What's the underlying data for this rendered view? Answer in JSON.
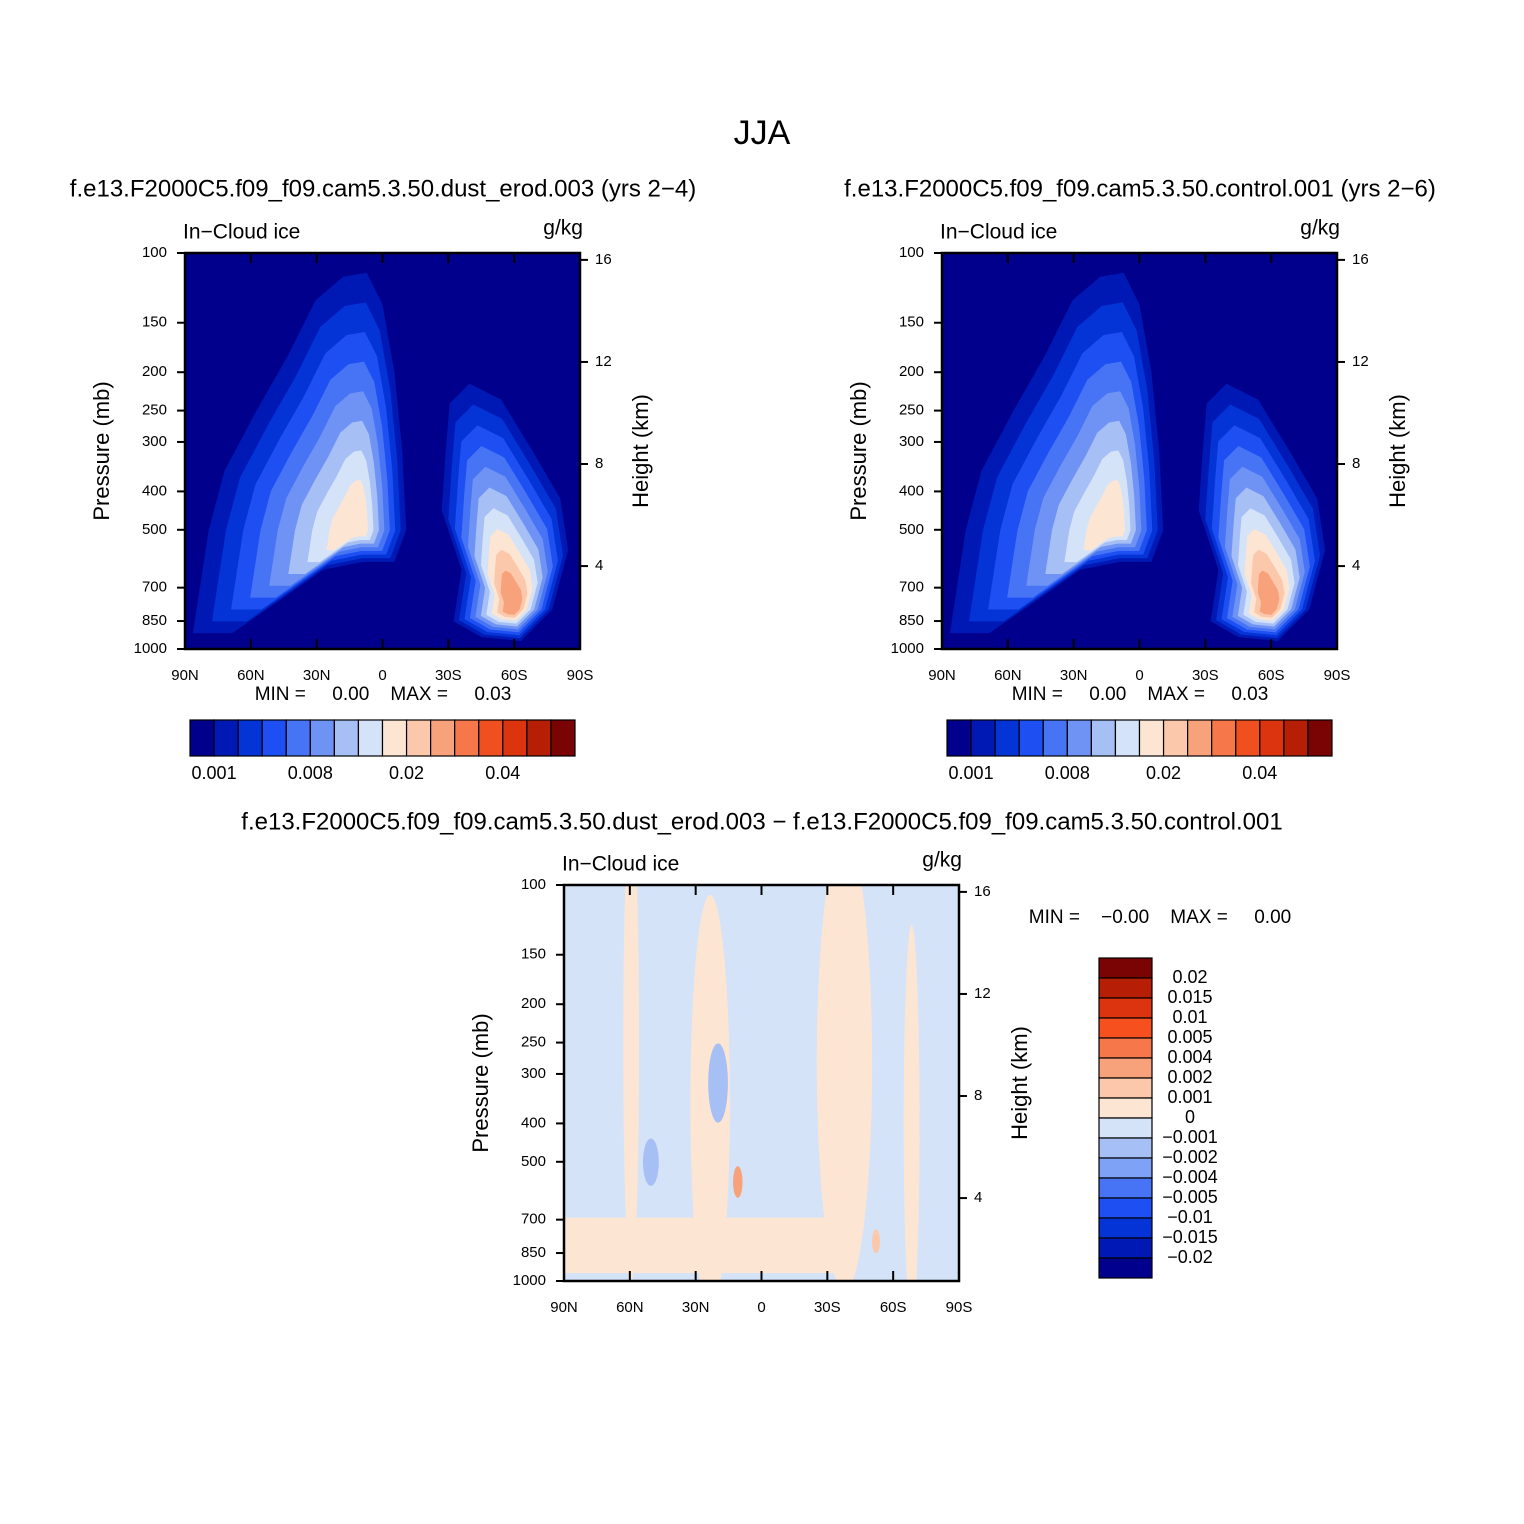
{
  "title": "JJA",
  "chart_data": [
    {
      "type": "contour",
      "title": "f.e13.F2000C5.f09_f09.cam5.3.50.dust_erod.003 (yrs 2−4)",
      "left_label": "In−Cloud ice",
      "right_label": "g/kg",
      "y_label": "Pressure (mb)",
      "y2_label": "Height (km)",
      "xlim": [
        90,
        -90
      ],
      "xticks": [
        {
          "value": 90,
          "label": "90N"
        },
        {
          "value": 60,
          "label": "60N"
        },
        {
          "value": 30,
          "label": "30N"
        },
        0,
        {
          "value": -30,
          "label": "30S"
        },
        {
          "value": -60,
          "label": "60S"
        },
        {
          "value": -90,
          "label": "90S"
        }
      ],
      "ylim": [
        1000,
        100
      ],
      "yscale": "log",
      "yticks": [
        100,
        150,
        200,
        250,
        300,
        400,
        500,
        700,
        850,
        1000
      ],
      "y2lim": [
        0.75,
        16.27
      ],
      "y2ticks": [
        4,
        8,
        12,
        16
      ],
      "stats": "MIN =     0.00    MAX =     0.03",
      "colorbar": {
        "orientation": "horizontal",
        "colors": [
          "#00008c",
          "#0018b4",
          "#0433d6",
          "#1d4ff2",
          "#4774f5",
          "#6e93f4",
          "#a6bff5",
          "#d4e3f8",
          "#fde5d4",
          "#fcc8ac",
          "#f8a27c",
          "#f6784a",
          "#f04f20",
          "#dd3410",
          "#b61f06",
          "#7a0303"
        ],
        "levels": [
          0.001,
          null,
          null,
          null,
          0.008,
          null,
          null,
          null,
          0.02,
          null,
          null,
          null,
          0.04,
          null,
          null
        ]
      }
    },
    {
      "type": "contour",
      "title": "f.e13.F2000C5.f09_f09.cam5.3.50.control.001 (yrs 2−6)",
      "left_label": "In−Cloud ice",
      "right_label": "g/kg",
      "y_label": "Pressure (mb)",
      "y2_label": "Height (km)",
      "xlim": [
        90,
        -90
      ],
      "xticks": [
        {
          "value": 90,
          "label": "90N"
        },
        {
          "value": 60,
          "label": "60N"
        },
        {
          "value": 30,
          "label": "30N"
        },
        0,
        {
          "value": -30,
          "label": "30S"
        },
        {
          "value": -60,
          "label": "60S"
        },
        {
          "value": -90,
          "label": "90S"
        }
      ],
      "ylim": [
        1000,
        100
      ],
      "yscale": "log",
      "yticks": [
        100,
        150,
        200,
        250,
        300,
        400,
        500,
        700,
        850,
        1000
      ],
      "y2lim": [
        0.75,
        16.27
      ],
      "y2ticks": [
        4,
        8,
        12,
        16
      ],
      "stats": "MIN =     0.00    MAX =     0.03",
      "colorbar": {
        "orientation": "horizontal",
        "colors": [
          "#00008c",
          "#0018b4",
          "#0433d6",
          "#1d4ff2",
          "#4774f5",
          "#6e93f4",
          "#a6bff5",
          "#d4e3f8",
          "#fde5d4",
          "#fcc8ac",
          "#f8a27c",
          "#f6784a",
          "#f04f20",
          "#dd3410",
          "#b61f06",
          "#7a0303"
        ],
        "levels": [
          0.001,
          null,
          null,
          null,
          0.008,
          null,
          null,
          null,
          0.02,
          null,
          null,
          null,
          0.04,
          null,
          null
        ]
      }
    },
    {
      "type": "contour",
      "title": "f.e13.F2000C5.f09_f09.cam5.3.50.dust_erod.003 − f.e13.F2000C5.f09_f09.cam5.3.50.control.001",
      "left_label": "In−Cloud ice",
      "right_label": "g/kg",
      "y_label": "Pressure (mb)",
      "y2_label": "Height (km)",
      "xlim": [
        90,
        -90
      ],
      "xticks": [
        {
          "value": 90,
          "label": "90N"
        },
        {
          "value": 60,
          "label": "60N"
        },
        {
          "value": 30,
          "label": "30N"
        },
        0,
        {
          "value": -30,
          "label": "30S"
        },
        {
          "value": -60,
          "label": "60S"
        },
        {
          "value": -90,
          "label": "90S"
        }
      ],
      "ylim": [
        1000,
        100
      ],
      "yscale": "log",
      "yticks": [
        100,
        150,
        200,
        250,
        300,
        400,
        500,
        700,
        850,
        1000
      ],
      "y2lim": [
        0.75,
        16.27
      ],
      "y2ticks": [
        4,
        8,
        12,
        16
      ],
      "stats": "MIN =    −0.00    MAX =     0.00",
      "colorbar": {
        "orientation": "vertical",
        "colors": [
          "#7a0303",
          "#b61f06",
          "#dd3410",
          "#f6501e",
          "#f6784a",
          "#f8a27c",
          "#fcc8ac",
          "#fde5d4",
          "#d4e3f8",
          "#a6bff5",
          "#7ea2f6",
          "#4774f5",
          "#1d4ff2",
          "#0433d6",
          "#0018b4",
          "#00008c"
        ],
        "levels": [
          0.02,
          0.015,
          0.01,
          0.005,
          0.004,
          0.002,
          0.001,
          0,
          {
            "value": -0.001,
            "label": "−0.001"
          },
          {
            "value": -0.002,
            "label": "−0.002"
          },
          {
            "value": -0.004,
            "label": "−0.004"
          },
          {
            "value": -0.005,
            "label": "−0.005"
          },
          {
            "value": -0.01,
            "label": "−0.01"
          },
          {
            "value": -0.015,
            "label": "−0.015"
          },
          {
            "value": -0.02,
            "label": "−0.02"
          }
        ]
      }
    }
  ]
}
